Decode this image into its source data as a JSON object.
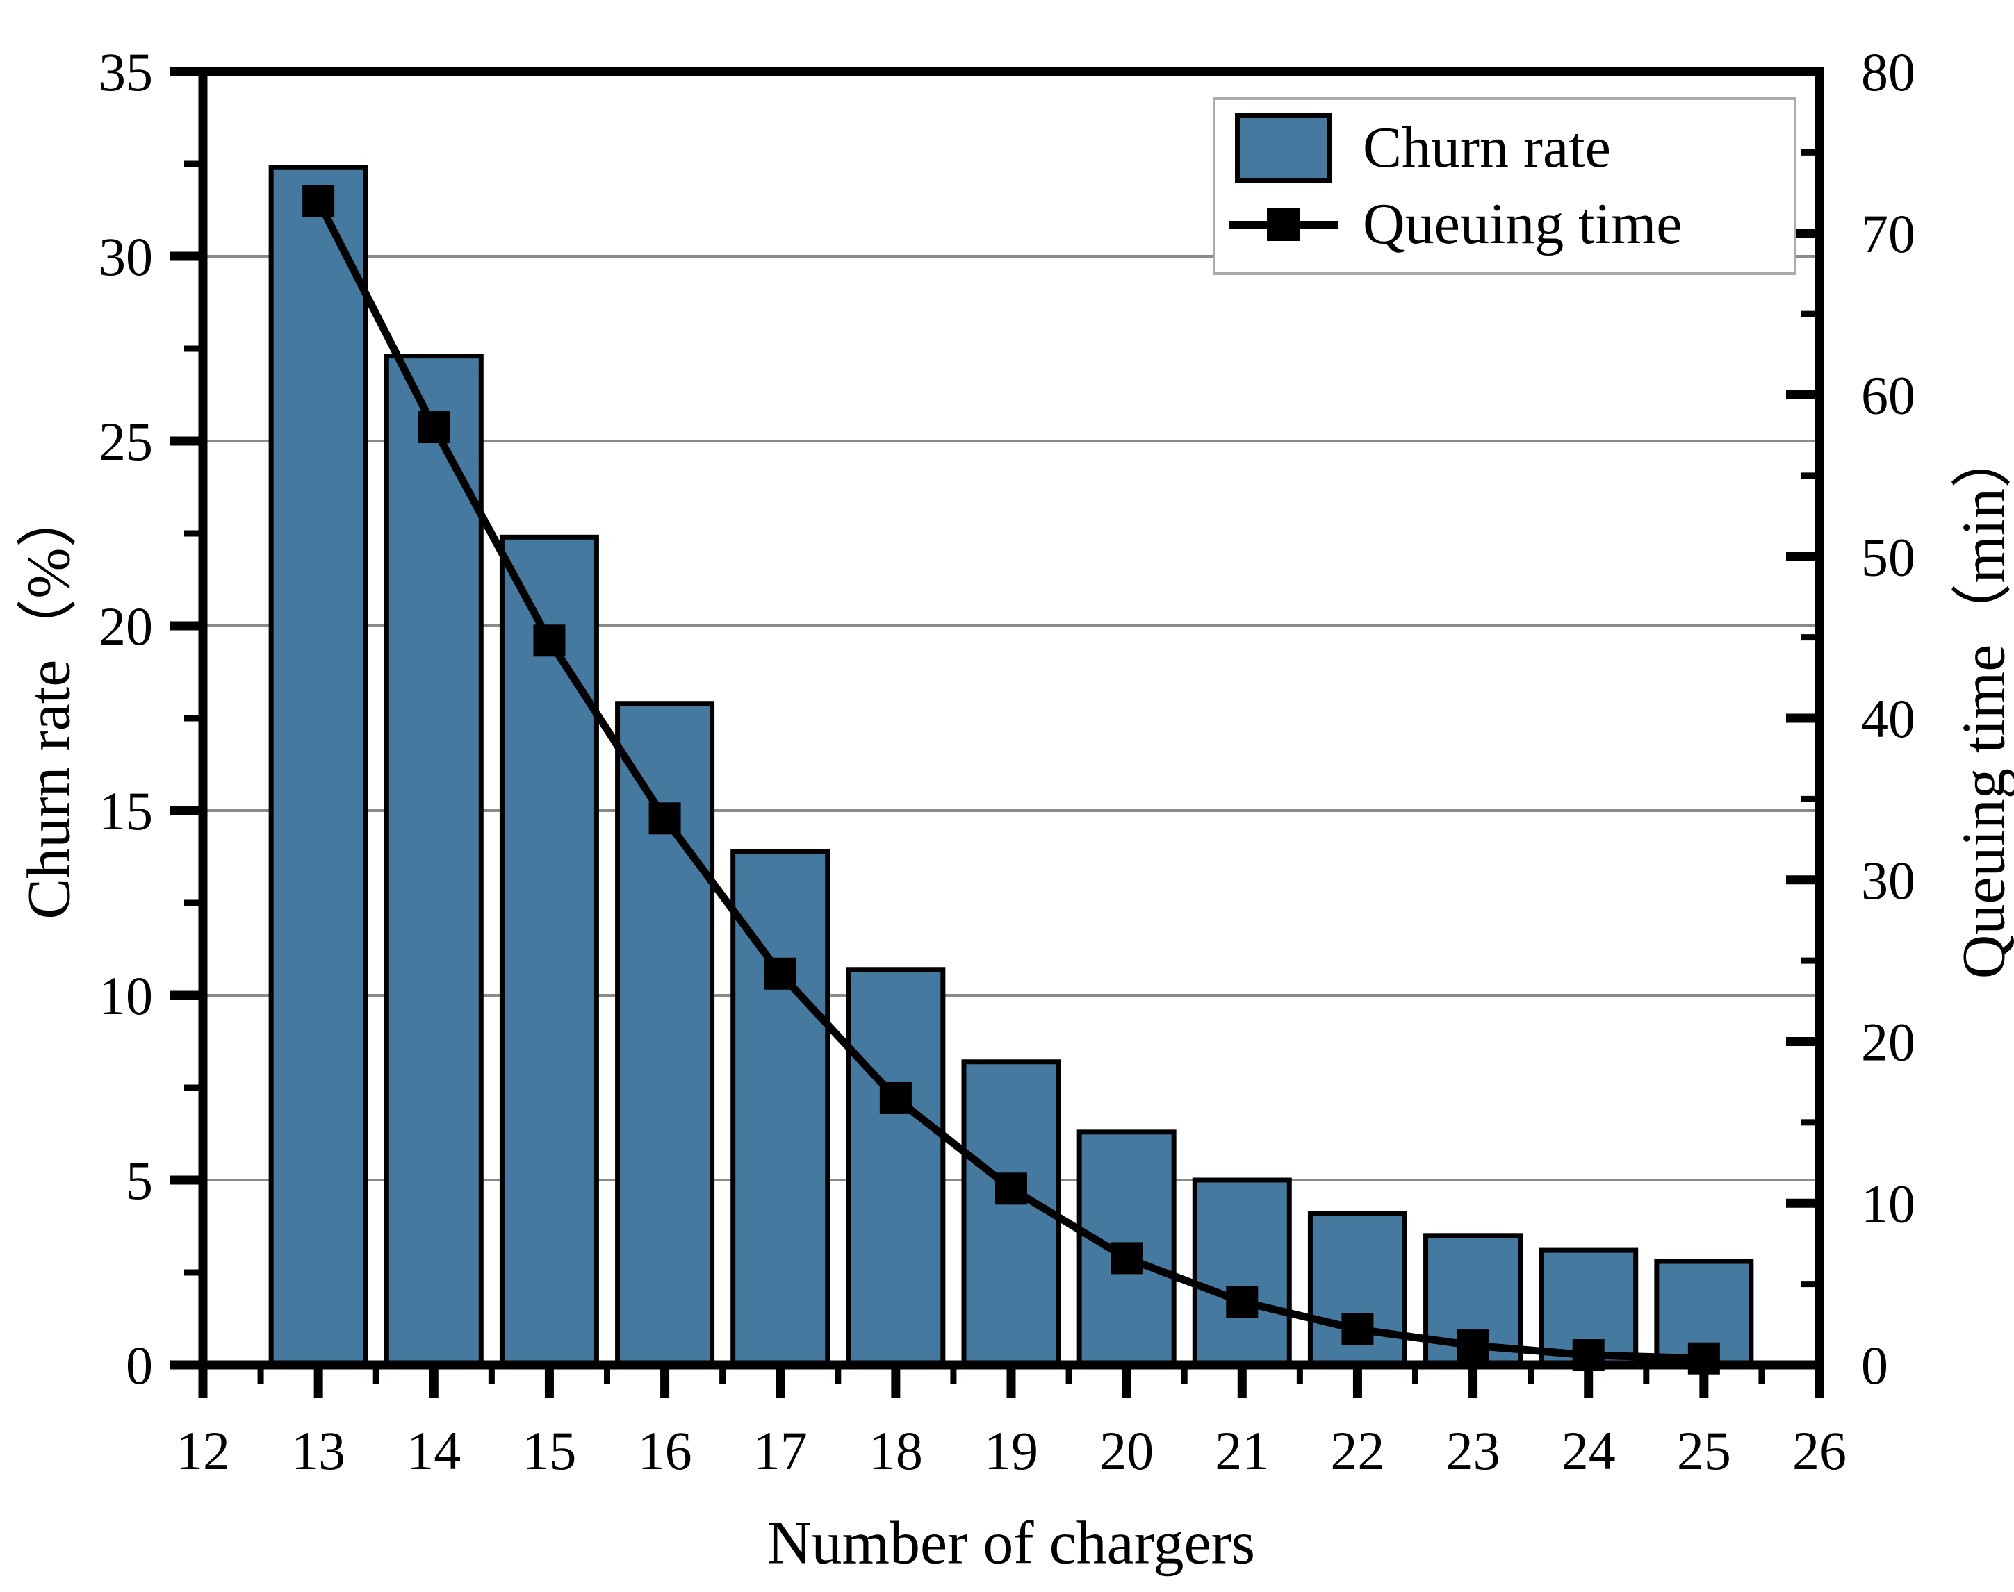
{
  "chart_data": {
    "type": "bar+line-dual-axis",
    "title": "",
    "xlabel": "Number of chargers",
    "ylabel_left": "Churn rate（%）",
    "ylabel_right": "Queuing time（min）",
    "categories": [
      13,
      14,
      15,
      16,
      17,
      18,
      19,
      20,
      21,
      22,
      23,
      24,
      25
    ],
    "series": [
      {
        "name": "Churn rate",
        "type": "bar",
        "axis": "left",
        "unit": "%",
        "values": [
          32.4,
          27.3,
          22.4,
          17.9,
          13.9,
          10.7,
          8.2,
          6.3,
          5.0,
          4.1,
          3.5,
          3.1,
          2.8
        ]
      },
      {
        "name": "Queuing time",
        "type": "line",
        "axis": "right",
        "unit": "min",
        "marker": "square",
        "values": [
          72.0,
          58.0,
          44.8,
          33.8,
          24.2,
          16.5,
          10.9,
          6.6,
          3.9,
          2.2,
          1.2,
          0.6,
          0.4
        ]
      }
    ],
    "xlim": [
      12,
      26
    ],
    "x_major_ticks": [
      12,
      13,
      14,
      15,
      16,
      17,
      18,
      19,
      20,
      21,
      22,
      23,
      24,
      25,
      26
    ],
    "x_minor_step": 0.5,
    "ylim_left": [
      0,
      35
    ],
    "y_major_ticks_left": [
      0,
      5,
      10,
      15,
      20,
      25,
      30,
      35
    ],
    "y_minor_step_left": 2.5,
    "ylim_right": [
      0,
      80
    ],
    "y_major_ticks_right": [
      0,
      10,
      20,
      30,
      40,
      50,
      60,
      70,
      80
    ],
    "y_minor_step_right": 5,
    "grid": {
      "horizontal_major": true,
      "vertical": false
    },
    "legend": {
      "position": "upper-right",
      "entries": [
        "Churn rate",
        "Queuing time"
      ]
    }
  },
  "colors": {
    "background": "#ffffff",
    "bar_fill": "#45799F",
    "bar_edge": "#000000",
    "line": "#000000",
    "marker": "#000000",
    "grid": "#8a8a8a",
    "axis": "#000000",
    "text": "#000000",
    "legend_border": "#ababab"
  }
}
